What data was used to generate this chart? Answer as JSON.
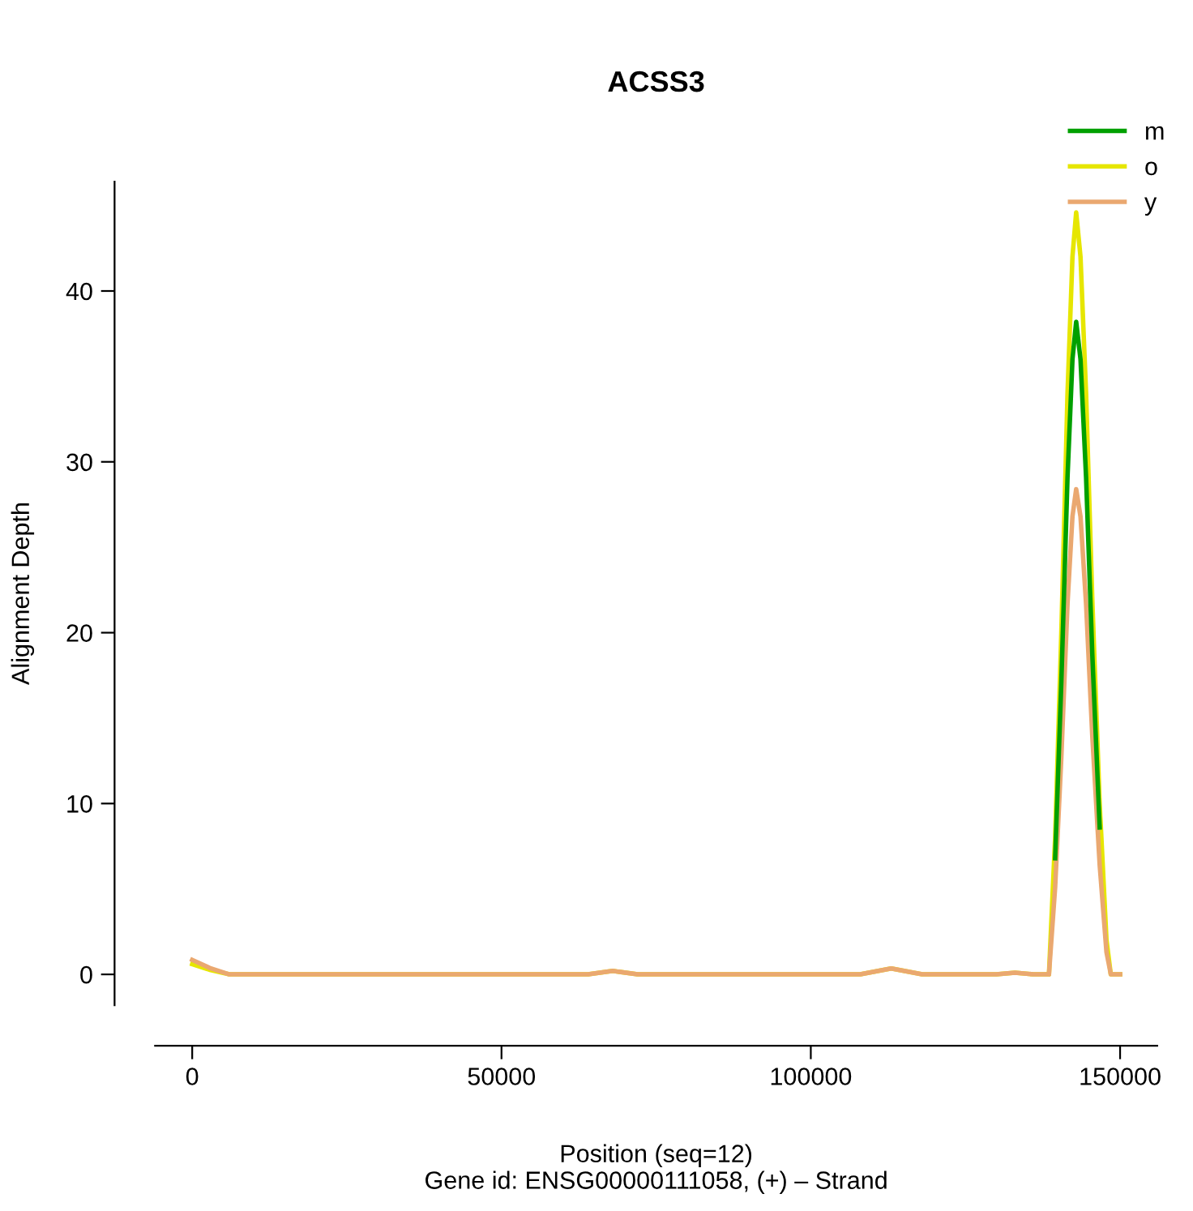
{
  "chart_data": {
    "type": "line",
    "title": "ACSS3",
    "xlabel": "Position (seq=12)\nGene id: ENSG00000111058, (+) – Strand",
    "ylabel": "Alignment Depth",
    "xlim": [
      -6000,
      156000
    ],
    "xticks": [
      0,
      50000,
      100000,
      150000
    ],
    "ylim": [
      -1.8,
      46.4
    ],
    "yticks": [
      0,
      10,
      20,
      30,
      40
    ],
    "grid": false,
    "legend": "top right",
    "marker": "none",
    "line_style": "solid",
    "series": [
      {
        "name": "m",
        "color": "#00a000",
        "x": [
          139500,
          140500,
          141500,
          142300,
          142900,
          143600,
          144500,
          145500,
          146700
        ],
        "values": [
          6.8,
          17.1,
          29.1,
          36,
          38.2,
          36,
          29.1,
          18.8,
          8.6
        ]
      },
      {
        "name": "o",
        "color": "#e6e600",
        "x": [
          0,
          3000,
          6000,
          64000,
          68000,
          72000,
          108000,
          113000,
          118000,
          130000,
          133000,
          136000,
          138500,
          139500,
          140500,
          141500,
          142300,
          142900,
          143600,
          144500,
          145500,
          146700,
          147800,
          148500,
          150000
        ],
        "values": [
          0.6,
          0.25,
          0,
          0,
          0.2,
          0,
          0,
          0.35,
          0,
          0,
          0.1,
          0,
          0,
          8,
          20,
          34,
          42,
          44.6,
          42,
          34,
          22,
          10,
          2,
          0,
          0
        ]
      },
      {
        "name": "y",
        "color": "#eaa870",
        "x": [
          0,
          3000,
          6000,
          64000,
          68000,
          72000,
          108000,
          113000,
          118000,
          130000,
          133000,
          136000,
          138500,
          139500,
          140500,
          141500,
          142300,
          142900,
          143600,
          144500,
          145500,
          146700,
          147800,
          148500,
          150000
        ],
        "values": [
          0.85,
          0.35,
          0,
          0,
          0.2,
          0,
          0,
          0.35,
          0,
          0,
          0.1,
          0,
          0,
          5.1,
          12.7,
          21.7,
          26.8,
          28.4,
          26.8,
          21.7,
          14,
          6.4,
          1.3,
          0,
          0
        ]
      }
    ]
  }
}
